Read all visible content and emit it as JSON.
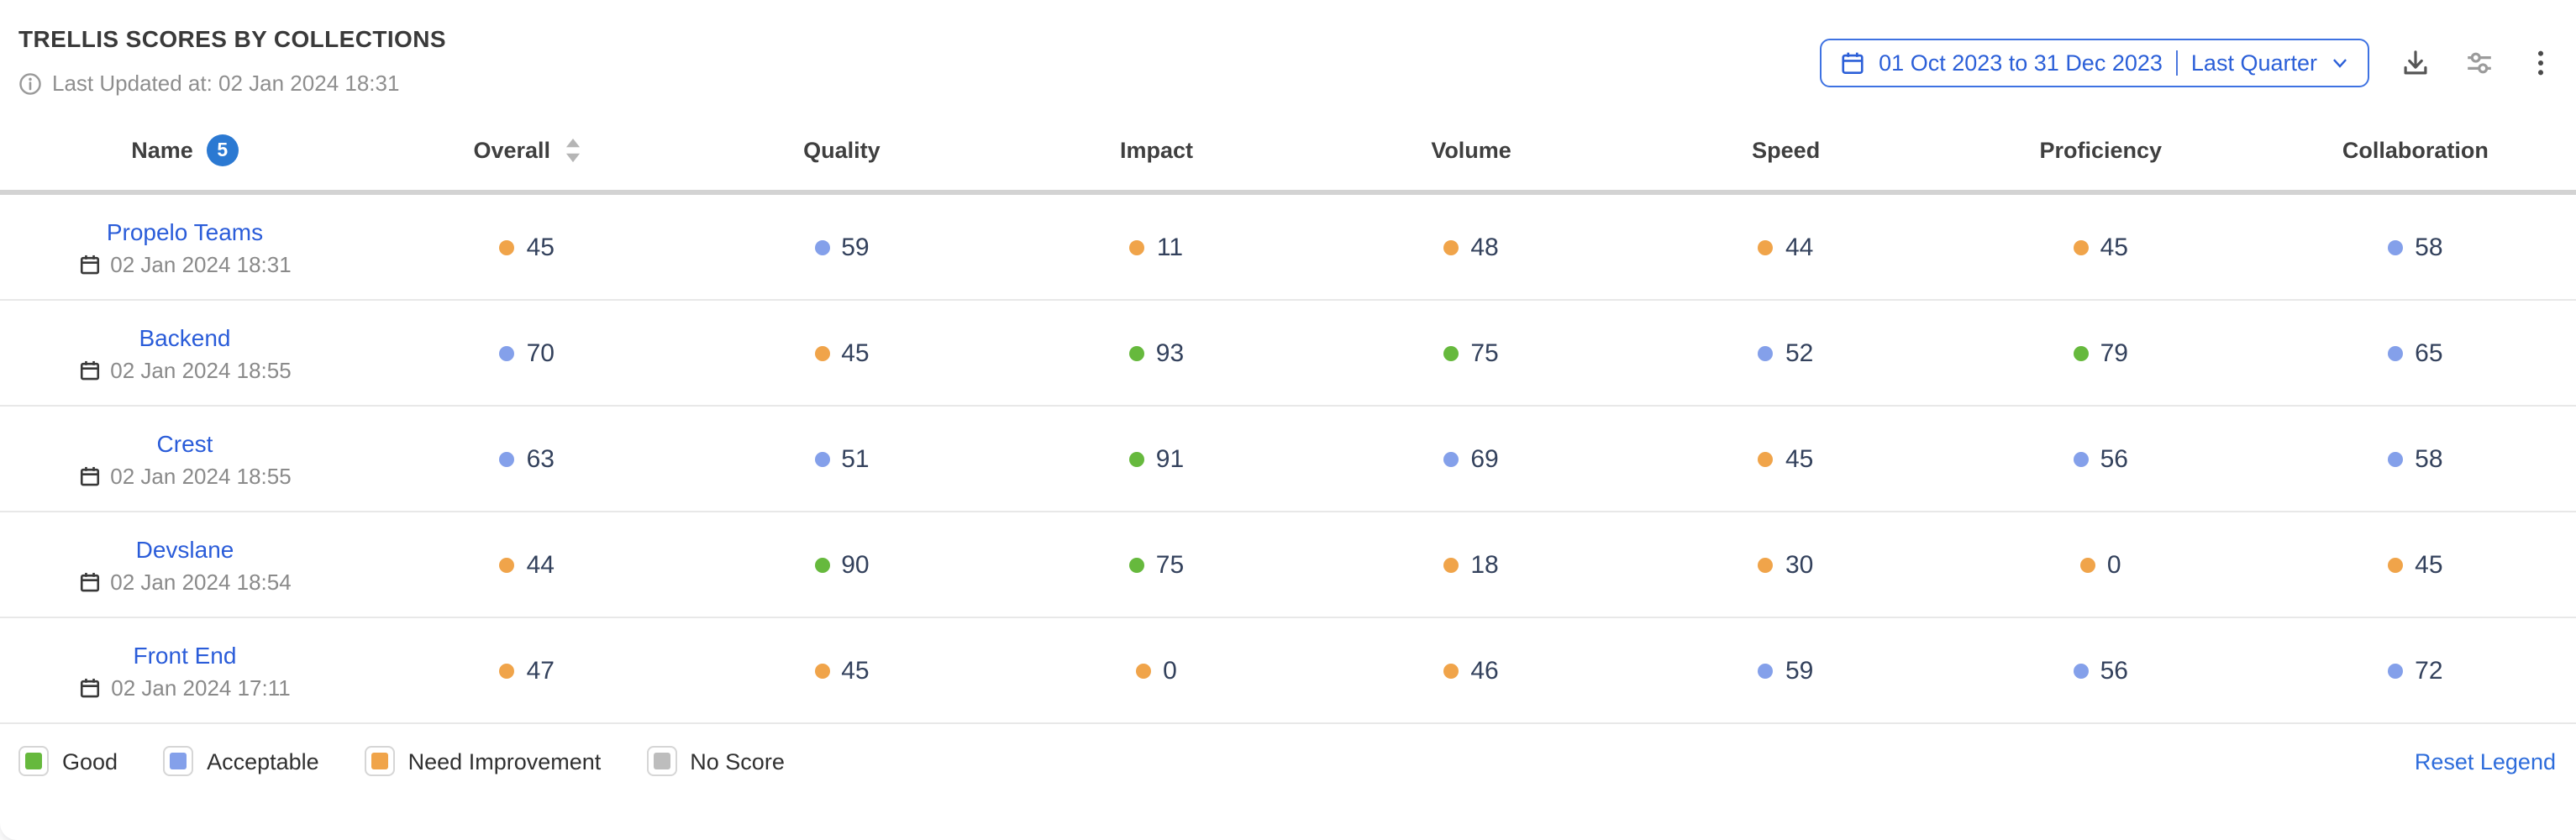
{
  "header": {
    "title": "TRELLIS SCORES BY COLLECTIONS",
    "last_updated": "Last Updated at: 02 Jan 2024 18:31",
    "date_range": {
      "range_label": "01 Oct 2023 to 31 Dec 2023",
      "preset_label": "Last Quarter"
    }
  },
  "table": {
    "columns": [
      "Name",
      "Overall",
      "Quality",
      "Impact",
      "Volume",
      "Speed",
      "Proficiency",
      "Collaboration"
    ],
    "name_badge_count": "5",
    "rows": [
      {
        "name": "Propelo Teams",
        "date": "02 Jan 2024 18:31",
        "scores": [
          {
            "value": "45",
            "status": "need_improvement"
          },
          {
            "value": "59",
            "status": "acceptable"
          },
          {
            "value": "11",
            "status": "need_improvement"
          },
          {
            "value": "48",
            "status": "need_improvement"
          },
          {
            "value": "44",
            "status": "need_improvement"
          },
          {
            "value": "45",
            "status": "need_improvement"
          },
          {
            "value": "58",
            "status": "acceptable"
          }
        ]
      },
      {
        "name": "Backend",
        "date": "02 Jan 2024 18:55",
        "scores": [
          {
            "value": "70",
            "status": "acceptable"
          },
          {
            "value": "45",
            "status": "need_improvement"
          },
          {
            "value": "93",
            "status": "good"
          },
          {
            "value": "75",
            "status": "good"
          },
          {
            "value": "52",
            "status": "acceptable"
          },
          {
            "value": "79",
            "status": "good"
          },
          {
            "value": "65",
            "status": "acceptable"
          }
        ]
      },
      {
        "name": "Crest",
        "date": "02 Jan 2024 18:55",
        "scores": [
          {
            "value": "63",
            "status": "acceptable"
          },
          {
            "value": "51",
            "status": "acceptable"
          },
          {
            "value": "91",
            "status": "good"
          },
          {
            "value": "69",
            "status": "acceptable"
          },
          {
            "value": "45",
            "status": "need_improvement"
          },
          {
            "value": "56",
            "status": "acceptable"
          },
          {
            "value": "58",
            "status": "acceptable"
          }
        ]
      },
      {
        "name": "Devslane",
        "date": "02 Jan 2024 18:54",
        "scores": [
          {
            "value": "44",
            "status": "need_improvement"
          },
          {
            "value": "90",
            "status": "good"
          },
          {
            "value": "75",
            "status": "good"
          },
          {
            "value": "18",
            "status": "need_improvement"
          },
          {
            "value": "30",
            "status": "need_improvement"
          },
          {
            "value": "0",
            "status": "need_improvement"
          },
          {
            "value": "45",
            "status": "need_improvement"
          }
        ]
      },
      {
        "name": "Front End",
        "date": "02 Jan 2024 17:11",
        "scores": [
          {
            "value": "47",
            "status": "need_improvement"
          },
          {
            "value": "45",
            "status": "need_improvement"
          },
          {
            "value": "0",
            "status": "need_improvement"
          },
          {
            "value": "46",
            "status": "need_improvement"
          },
          {
            "value": "59",
            "status": "acceptable"
          },
          {
            "value": "56",
            "status": "acceptable"
          },
          {
            "value": "72",
            "status": "acceptable"
          }
        ]
      }
    ]
  },
  "legend": {
    "items": [
      {
        "label": "Good",
        "status": "good"
      },
      {
        "label": "Acceptable",
        "status": "acceptable"
      },
      {
        "label": "Need Improvement",
        "status": "need_improvement"
      },
      {
        "label": "No Score",
        "status": "no_score"
      }
    ],
    "reset_label": "Reset Legend"
  },
  "colors": {
    "good": "#66b93d",
    "acceptable": "#84a0ea",
    "need_improvement": "#f0a44a",
    "no_score": "#bdbdbd",
    "link": "#2a5cd9",
    "accent": "#2b5fd8"
  }
}
